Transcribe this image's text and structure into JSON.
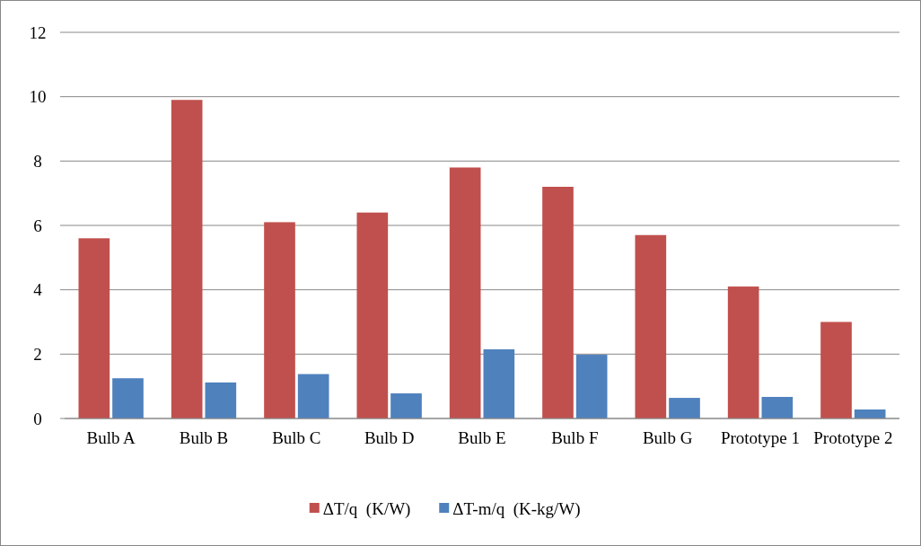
{
  "chart_data": {
    "type": "bar",
    "categories": [
      "Bulb A",
      "Bulb B",
      "Bulb C",
      "Bulb D",
      "Bulb E",
      "Bulb F",
      "Bulb G",
      "Prototype 1",
      "Prototype 2"
    ],
    "series": [
      {
        "name": "ΔT/q  (K/W)",
        "color": "#c0504d",
        "values": [
          5.6,
          9.9,
          6.1,
          6.4,
          7.8,
          7.2,
          5.7,
          4.1,
          3.0
        ]
      },
      {
        "name": "ΔT-m/q  (K-kg/W)",
        "color": "#4f81bd",
        "values": [
          1.25,
          1.12,
          1.38,
          0.78,
          2.15,
          1.98,
          0.64,
          0.67,
          0.28
        ]
      }
    ],
    "ylim": [
      0,
      12
    ],
    "yticks": [
      0,
      2,
      4,
      6,
      8,
      10,
      12
    ],
    "grid": "y",
    "legend": "bottom"
  }
}
